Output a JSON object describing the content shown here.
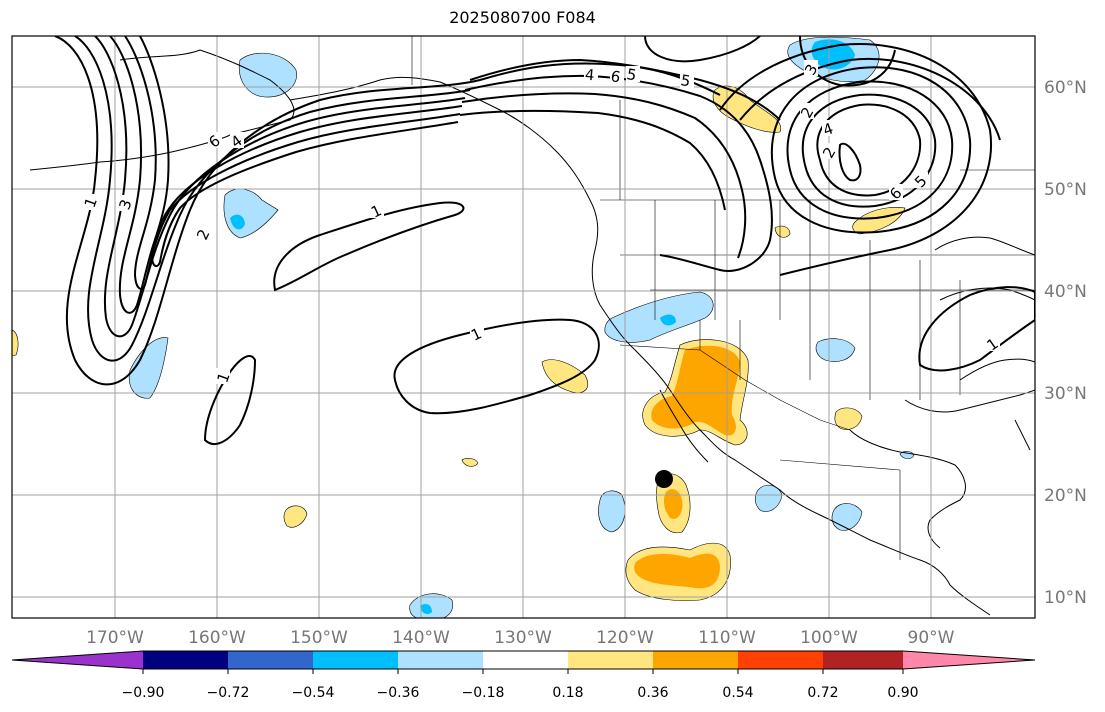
{
  "title": "2025080700 F084",
  "map": {
    "lat_labels": [
      "60°N",
      "50°N",
      "40°N",
      "30°N",
      "20°N",
      "10°N"
    ],
    "lon_labels": [
      "170°W",
      "160°W",
      "150°W",
      "140°W",
      "130°W",
      "120°W",
      "110°W",
      "100°W",
      "90°W"
    ],
    "gridlines": true,
    "marker": {
      "lon": "116.5°W",
      "lat": "21.7°N",
      "color": "#000000"
    },
    "contour_labels": [
      "1",
      "1",
      "1",
      "1",
      "1",
      "2",
      "3",
      "4",
      "5",
      "6",
      "4",
      "5",
      "6",
      "2",
      "3",
      "4",
      "5",
      "6",
      "2"
    ]
  },
  "colorbar": {
    "ticks": [
      "−0.90",
      "−0.72",
      "−0.54",
      "−0.36",
      "−0.18",
      "0.18",
      "0.36",
      "0.54",
      "0.72",
      "0.90"
    ],
    "colors": [
      "#9933cc",
      "#000080",
      "#3366cc",
      "#00bfff",
      "#aee0ff",
      "#ffffff",
      "#ffe680",
      "#ffa500",
      "#ff4000",
      "#b22222",
      "#ff88aa"
    ]
  }
}
